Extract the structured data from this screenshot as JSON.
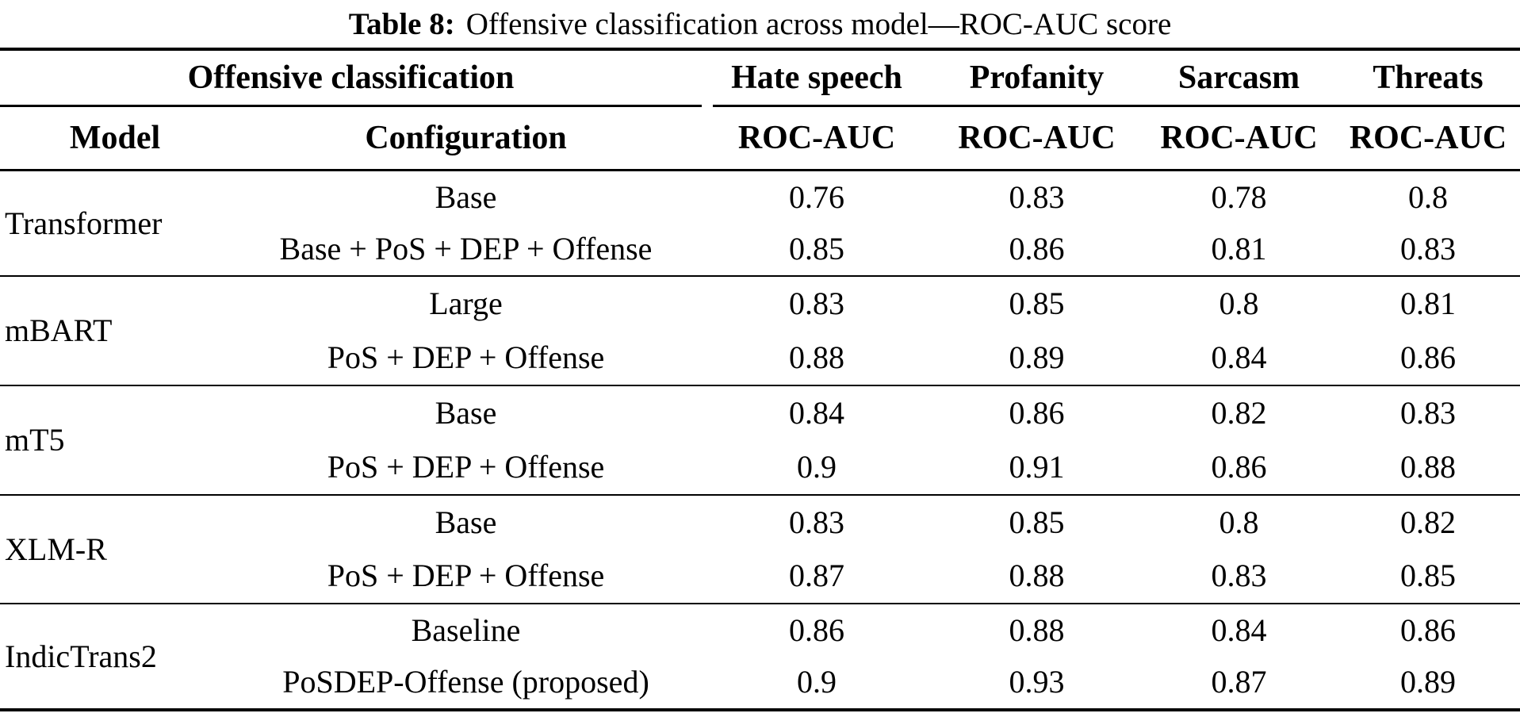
{
  "title": {
    "label": "Table 8:",
    "text": "Offensive classification across model—ROC-AUC score"
  },
  "table": {
    "group_header": "Offensive classification",
    "category_headers": [
      "Hate speech",
      "Profanity",
      "Sarcasm",
      "Threats"
    ],
    "col_headers": {
      "model": "Model",
      "configuration": "Configuration",
      "metric1": "ROC-AUC",
      "metric2": "ROC-AUC",
      "metric3": "ROC-AUC",
      "metric4": "ROC-AUC"
    },
    "groups": [
      {
        "model": "Transformer",
        "rows": [
          {
            "config": "Base",
            "values": [
              "0.76",
              "0.83",
              "0.78",
              "0.8"
            ]
          },
          {
            "config": "Base + PoS + DEP + Offense",
            "values": [
              "0.85",
              "0.86",
              "0.81",
              "0.83"
            ]
          }
        ]
      },
      {
        "model": "mBART",
        "rows": [
          {
            "config": "Large",
            "values": [
              "0.83",
              "0.85",
              "0.8",
              "0.81"
            ]
          },
          {
            "config": "PoS + DEP + Offense",
            "values": [
              "0.88",
              "0.89",
              "0.84",
              "0.86"
            ]
          }
        ]
      },
      {
        "model": "mT5",
        "rows": [
          {
            "config": "Base",
            "values": [
              "0.84",
              "0.86",
              "0.82",
              "0.83"
            ]
          },
          {
            "config": "PoS + DEP + Offense",
            "values": [
              "0.9",
              "0.91",
              "0.86",
              "0.88"
            ]
          }
        ]
      },
      {
        "model": "XLM-R",
        "rows": [
          {
            "config": "Base",
            "values": [
              "0.83",
              "0.85",
              "0.8",
              "0.82"
            ]
          },
          {
            "config": "PoS + DEP + Offense",
            "values": [
              "0.87",
              "0.88",
              "0.83",
              "0.85"
            ]
          }
        ]
      },
      {
        "model": "IndicTrans2",
        "rows": [
          {
            "config": "Baseline",
            "values": [
              "0.86",
              "0.88",
              "0.84",
              "0.86"
            ]
          },
          {
            "config": "PoSDEP-Offense (proposed)",
            "values": [
              "0.9",
              "0.93",
              "0.87",
              "0.89"
            ]
          }
        ]
      }
    ]
  },
  "colors": {
    "background": "#ffffff",
    "text": "#000000",
    "rule": "#000000"
  }
}
